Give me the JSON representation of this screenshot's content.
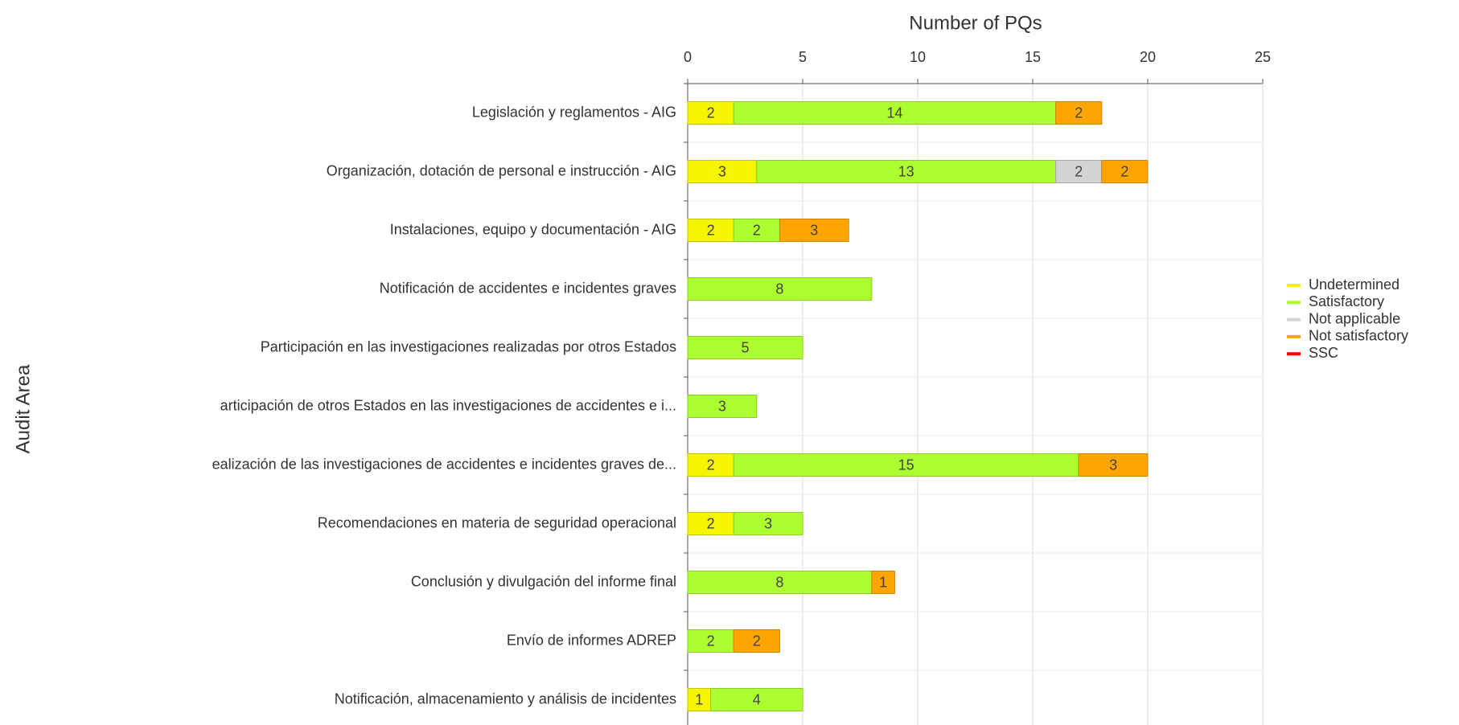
{
  "chart_data": {
    "type": "stacked_barh",
    "title": "Number of PQs",
    "y_label": "Audit Area",
    "categories": [
      "Legislación y reglamentos - AIG",
      "Organización, dotación de personal e instrucción - AIG",
      "Instalaciones, equipo y documentación - AIG",
      "Notificación de accidentes e incidentes graves",
      "Participación en las investigaciones realizadas por otros Estados",
      "articipación de otros Estados en las investigaciones de accidentes e i...",
      "ealización de las investigaciones de accidentes e incidentes graves de...",
      "Recomendaciones en materia de seguridad operacional",
      "Conclusión y divulgación del informe final",
      "Envío de informes ADREP",
      "Notificación, almacenamiento y análisis de incidentes"
    ],
    "series": [
      {
        "name": "Undetermined",
        "color": "#f5f500",
        "values": [
          2,
          3,
          2,
          null,
          null,
          null,
          2,
          2,
          null,
          null,
          1
        ]
      },
      {
        "name": "Satisfactory",
        "color": "#adff2f",
        "values": [
          14,
          13,
          2,
          8,
          5,
          3,
          15,
          3,
          8,
          2,
          4
        ]
      },
      {
        "name": "Not applicable",
        "color": "#d3d3d3",
        "values": [
          null,
          2,
          null,
          null,
          null,
          null,
          null,
          null,
          null,
          null,
          null
        ]
      },
      {
        "name": "Not satisfactory",
        "color": "#ffa500",
        "values": [
          2,
          2,
          3,
          null,
          null,
          null,
          3,
          null,
          1,
          2,
          null
        ]
      },
      {
        "name": "SSC",
        "color": "#ff0000",
        "values": [
          null,
          null,
          null,
          null,
          null,
          null,
          null,
          null,
          null,
          null,
          null
        ]
      }
    ],
    "xlim": [
      0,
      25
    ],
    "xticks": [
      0,
      5,
      10,
      15,
      20,
      25
    ],
    "grid": true,
    "legend": "right"
  }
}
